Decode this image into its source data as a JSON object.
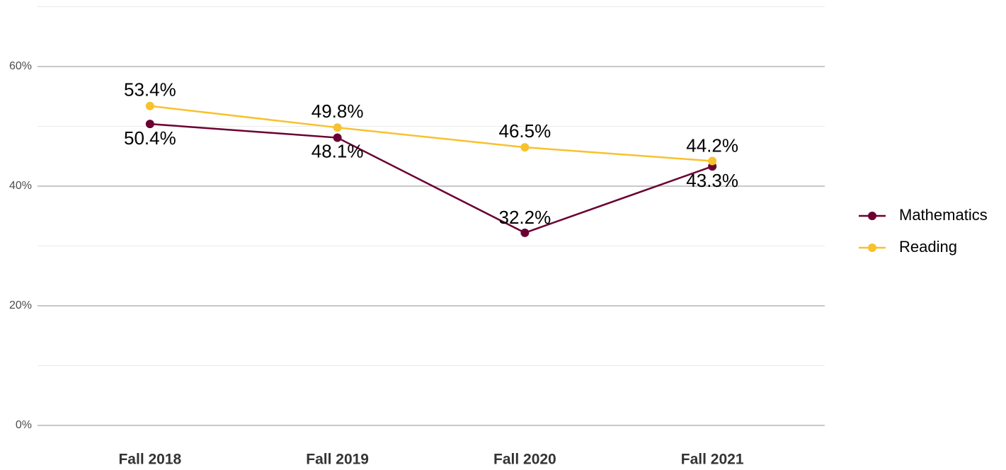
{
  "chart_data": {
    "type": "line",
    "categories": [
      "Fall 2018",
      "Fall 2019",
      "Fall 2020",
      "Fall 2021"
    ],
    "series": [
      {
        "name": "Mathematics",
        "color": "#6b0033",
        "values": [
          50.4,
          48.1,
          32.2,
          43.3
        ],
        "value_labels": [
          "50.4%",
          "48.1%",
          "32.2%",
          "43.3%"
        ]
      },
      {
        "name": "Reading",
        "color": "#f8c12d",
        "values": [
          53.4,
          49.8,
          46.5,
          44.2
        ],
        "value_labels": [
          "53.4%",
          "49.8%",
          "46.5%",
          "44.2%"
        ]
      }
    ],
    "ylim": [
      0,
      70
    ],
    "yticks": [
      {
        "value": 0,
        "label": "0%"
      },
      {
        "value": 20,
        "label": "20%"
      },
      {
        "value": 40,
        "label": "40%"
      },
      {
        "value": 60,
        "label": "60%"
      }
    ],
    "minor_yticks": [
      10,
      30,
      50,
      70
    ],
    "grid": true,
    "legend": "right"
  }
}
